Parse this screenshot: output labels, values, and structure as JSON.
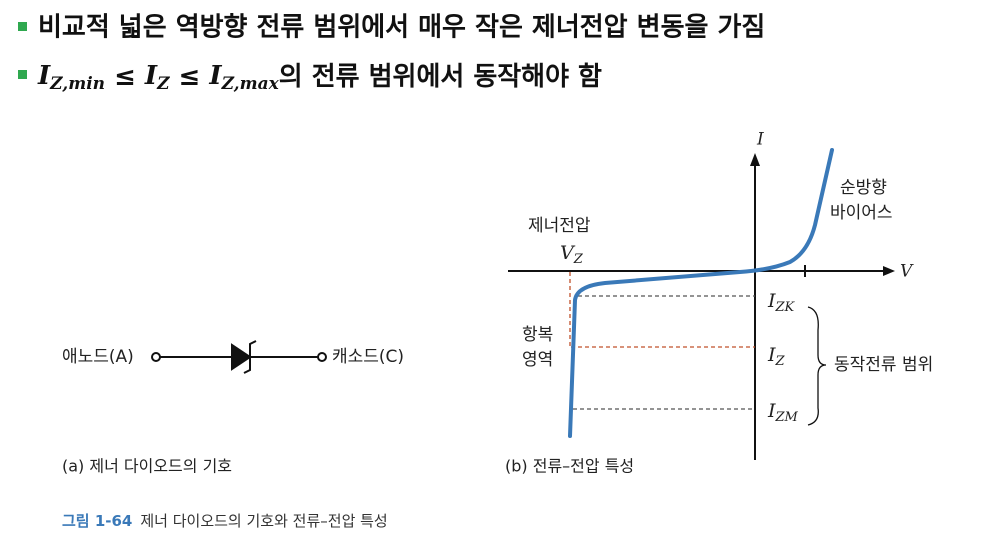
{
  "bullets": [
    {
      "text": "비교적 넓은 역방향 전류 범위에서 매우 작은 제너전압 변동을 가짐"
    },
    {
      "parts": [
        "I",
        "Z,min",
        " ≤ ",
        "I",
        "Z",
        " ≤ ",
        "I",
        "Z,max",
        "의 전류 범위에서 동작해야 함"
      ]
    }
  ],
  "symbol": {
    "anode": "애노드(A)",
    "cathode": "캐소드(C)",
    "caption": "(a) 제너 다이오드의 기호"
  },
  "graph": {
    "y_axis": "I",
    "x_axis": "V",
    "forward_bias": [
      "순방향",
      "바이어스"
    ],
    "zener_voltage": "제너전압",
    "vz": [
      "V",
      "Z"
    ],
    "breakdown": [
      "항복",
      "영역"
    ],
    "izk": [
      "I",
      "ZK"
    ],
    "iz": [
      "I",
      "Z"
    ],
    "izm": [
      "I",
      "ZM"
    ],
    "range": "동작전류 범위",
    "caption": "(b) 전류–전압 특성"
  },
  "figure": {
    "number": "그림 1-64",
    "caption": "제너 다이오드의 기호와 전류–전압 특성"
  }
}
